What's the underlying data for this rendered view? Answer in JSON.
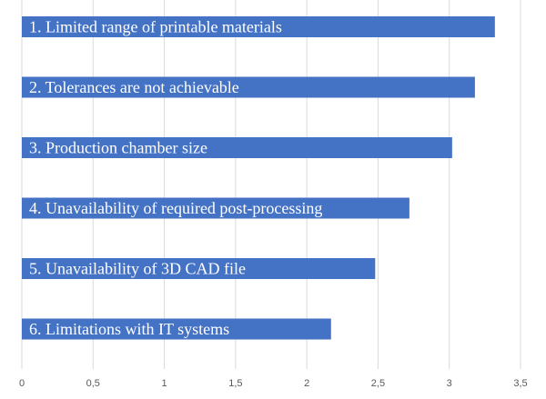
{
  "chart_data": {
    "type": "bar",
    "orientation": "horizontal",
    "categories": [
      "1. Limited range of printable materials",
      "2. Tolerances are not achievable",
      "3. Production chamber size",
      "4. Unavailability of required post-processing",
      "5. Unavailability of 3D CAD file",
      "6. Limitations with IT systems"
    ],
    "values": [
      3.32,
      3.18,
      3.02,
      2.72,
      2.48,
      2.17
    ],
    "xlim": [
      0,
      3.5
    ],
    "x_ticks": [
      "0",
      "0,5",
      "1",
      "1,5",
      "2",
      "2,5",
      "3",
      "3,5"
    ],
    "grid": true,
    "legend": "none",
    "bar_color": "#4472c4",
    "label_color": "#ffffff",
    "grid_color": "#d9d9d9",
    "tick_color": "#595959"
  }
}
